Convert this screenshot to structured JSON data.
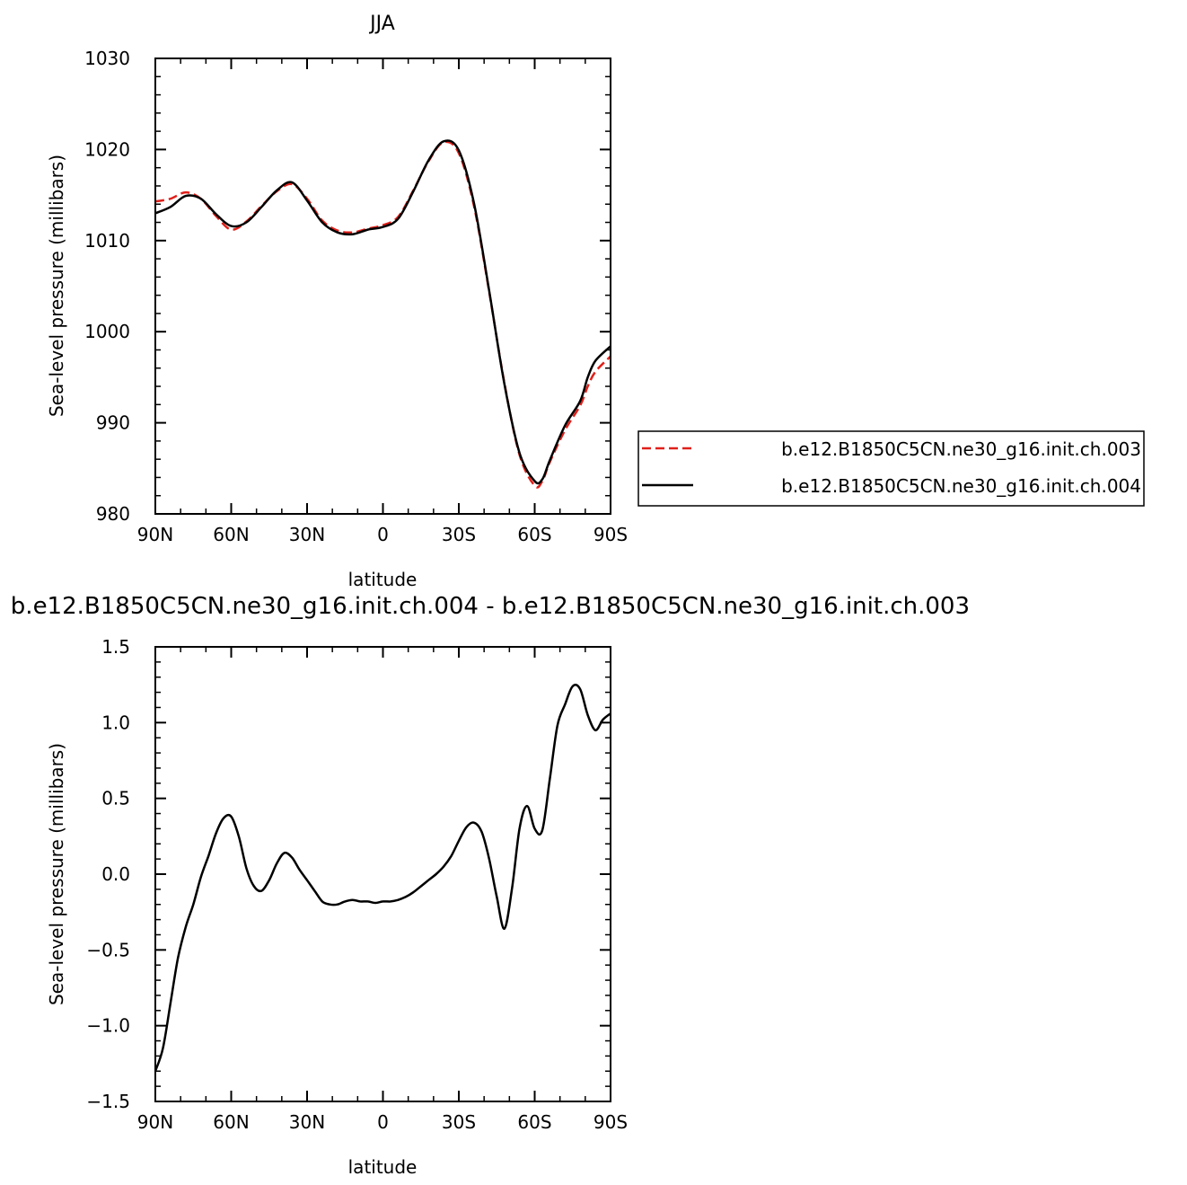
{
  "chart_data": [
    {
      "type": "line",
      "title": "JJA",
      "xlabel": "latitude",
      "ylabel": "Sea-level pressure (millibars)",
      "xlim": [
        90,
        -90
      ],
      "ylim": [
        980,
        1030
      ],
      "x_ticks": [
        90,
        60,
        30,
        0,
        -30,
        -60,
        -90
      ],
      "x_tick_labels": [
        "90N",
        "60N",
        "30N",
        "0",
        "30S",
        "60S",
        "90S"
      ],
      "y_ticks": [
        980,
        990,
        1000,
        1010,
        1020,
        1030
      ],
      "y_tick_labels": [
        "980",
        "990",
        "1000",
        "1010",
        "1020",
        "1030"
      ],
      "legend_position": "right",
      "x": [
        90,
        84,
        78,
        72,
        66,
        60,
        54,
        48,
        42,
        36,
        30,
        24,
        18,
        12,
        6,
        0,
        -6,
        -12,
        -18,
        -24,
        -30,
        -36,
        -42,
        -48,
        -54,
        -60,
        -63,
        -66,
        -72,
        -78,
        -81,
        -84,
        -90
      ],
      "series": [
        {
          "name": "b.e12.B1850C5CN.ne30_g16.init.ch.003",
          "color": "#e0201a",
          "dash": "dashed",
          "values": [
            1014.3,
            1014.6,
            1015.3,
            1014.6,
            1012.7,
            1011.2,
            1012.1,
            1013.8,
            1015.4,
            1016.2,
            1014.6,
            1012.2,
            1011.1,
            1010.9,
            1011.3,
            1011.7,
            1012.6,
            1015.5,
            1018.7,
            1020.8,
            1019.6,
            1013.8,
            1004.4,
            994.4,
            986.5,
            983.1,
            983.6,
            985.7,
            989.2,
            991.9,
            994.0,
            995.6,
            997.3
          ]
        },
        {
          "name": "b.e12.B1850C5CN.ne30_g16.init.ch.004",
          "color": "#000000",
          "dash": "solid",
          "values": [
            1013.0,
            1013.7,
            1014.9,
            1014.6,
            1012.9,
            1011.6,
            1012.0,
            1013.7,
            1015.5,
            1016.4,
            1014.4,
            1012.0,
            1010.9,
            1010.7,
            1011.2,
            1011.5,
            1012.4,
            1015.4,
            1018.8,
            1020.9,
            1019.9,
            1014.1,
            1004.5,
            994.3,
            986.7,
            983.6,
            983.8,
            985.9,
            989.7,
            992.4,
            995.0,
            996.8,
            998.4
          ]
        }
      ]
    },
    {
      "type": "line",
      "title": "b.e12.B1850C5CN.ne30_g16.init.ch.004 - b.e12.B1850C5CN.ne30_g16.init.ch.003",
      "xlabel": "latitude",
      "ylabel": "Sea-level pressure (millibars)",
      "xlim": [
        90,
        -90
      ],
      "ylim": [
        -1.5,
        1.5
      ],
      "x_ticks": [
        90,
        60,
        30,
        0,
        -30,
        -60,
        -90
      ],
      "x_tick_labels": [
        "90N",
        "60N",
        "30N",
        "0",
        "30S",
        "60S",
        "90S"
      ],
      "y_ticks": [
        -1.5,
        -1.0,
        -0.5,
        0.0,
        0.5,
        1.0,
        1.5
      ],
      "y_tick_labels": [
        "-1.5",
        "-1.0",
        "-0.5",
        "0.0",
        "0.5",
        "1.0",
        "1.5"
      ],
      "x": [
        90,
        87,
        84,
        81,
        78,
        75,
        72,
        69,
        66,
        63,
        60,
        57,
        54,
        51,
        48,
        45,
        42,
        39,
        36,
        33,
        30,
        27,
        24,
        21,
        18,
        15,
        12,
        9,
        6,
        3,
        0,
        -3,
        -6,
        -9,
        -12,
        -15,
        -18,
        -21,
        -24,
        -27,
        -30,
        -33,
        -36,
        -39,
        -42,
        -45,
        -48,
        -51,
        -54,
        -57,
        -60,
        -63,
        -66,
        -69,
        -72,
        -75,
        -78,
        -81,
        -84,
        -87,
        -90
      ],
      "series": [
        {
          "name": "",
          "color": "#000000",
          "dash": "solid",
          "values": [
            -1.3,
            -1.15,
            -0.85,
            -0.55,
            -0.35,
            -0.2,
            -0.02,
            0.12,
            0.27,
            0.37,
            0.38,
            0.25,
            0.04,
            -0.08,
            -0.11,
            -0.04,
            0.07,
            0.14,
            0.11,
            0.03,
            -0.04,
            -0.11,
            -0.18,
            -0.2,
            -0.2,
            -0.18,
            -0.17,
            -0.18,
            -0.18,
            -0.19,
            -0.18,
            -0.18,
            -0.17,
            -0.15,
            -0.12,
            -0.08,
            -0.04,
            0.0,
            0.05,
            0.12,
            0.22,
            0.31,
            0.34,
            0.28,
            0.1,
            -0.15,
            -0.36,
            -0.1,
            0.3,
            0.45,
            0.3,
            0.29,
            0.63,
            0.98,
            1.12,
            1.24,
            1.22,
            1.05,
            0.95,
            1.02,
            1.06
          ]
        }
      ]
    }
  ]
}
